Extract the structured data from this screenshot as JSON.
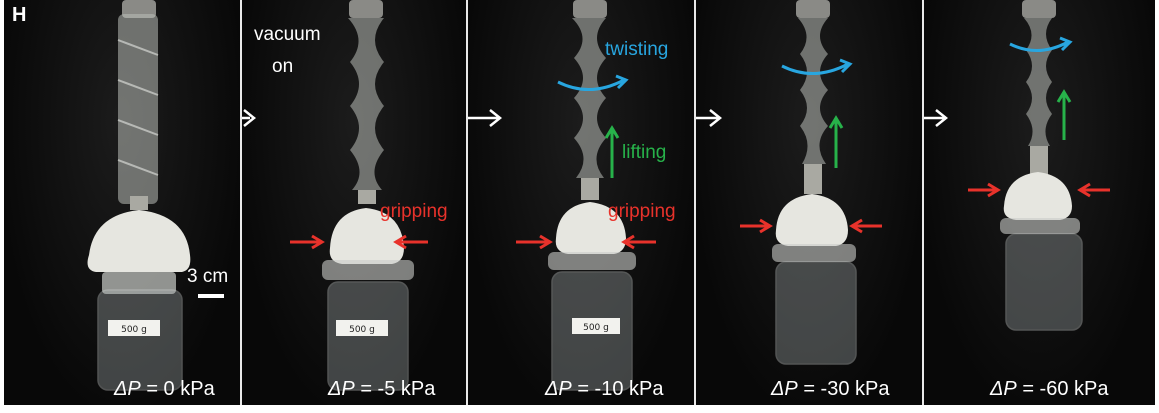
{
  "panel_letter": "H",
  "labels": {
    "vacuum": "vacuum",
    "on": "on",
    "gripping": "gripping",
    "twisting": "twisting",
    "lifting": "lifting",
    "scale": "3 cm"
  },
  "jar_label": "500 g",
  "pressure_symbol": "ΔP",
  "panels": [
    {
      "pressure": " = 0 kPa"
    },
    {
      "pressure": " = -5 kPa"
    },
    {
      "pressure": " = -10 kPa"
    },
    {
      "pressure": " = -30 kPa"
    },
    {
      "pressure": " = -60 kPa"
    }
  ],
  "colors": {
    "gripping_arrow": "#e8322b",
    "twisting_arrow": "#28a6e0",
    "lifting_arrow": "#27b24a",
    "sequence_arrow": "#ffffff"
  }
}
